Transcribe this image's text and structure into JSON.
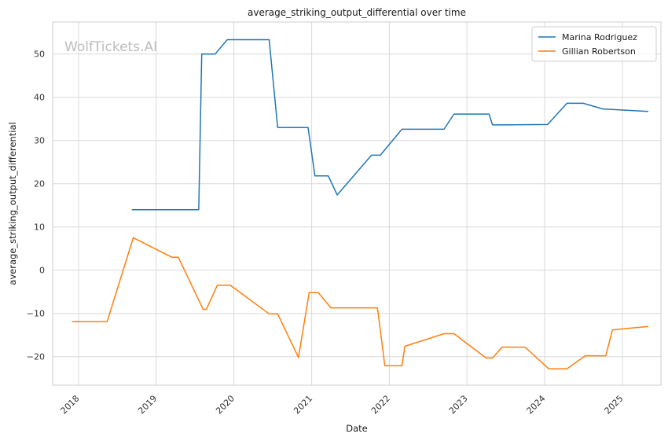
{
  "chart_data": {
    "type": "line",
    "title": "average_striking_output_differential over time",
    "xlabel": "Date",
    "ylabel": "average_striking_output_differential",
    "watermark": "WolfTickets.AI",
    "grid": true,
    "legend_position": "top-right",
    "x_ticks": [
      "2018",
      "2019",
      "2020",
      "2021",
      "2022",
      "2023",
      "2024",
      "2025"
    ],
    "y_ticks": [
      -20,
      -10,
      0,
      10,
      20,
      30,
      40,
      50
    ],
    "xlim": [
      "2017-09-01",
      "2025-07-01"
    ],
    "ylim": [
      -26.6,
      57.4
    ],
    "series": [
      {
        "name": "Marina Rodriguez",
        "color": "#1f77b4",
        "points": [
          [
            "2018-09-08",
            14.0
          ],
          [
            "2019-07-20",
            14.0
          ],
          [
            "2019-08-03",
            50.0
          ],
          [
            "2019-10-05",
            50.0
          ],
          [
            "2019-12-01",
            53.3
          ],
          [
            "2020-06-15",
            53.3
          ],
          [
            "2020-07-25",
            33.0
          ],
          [
            "2020-12-15",
            33.0
          ],
          [
            "2021-01-16",
            21.8
          ],
          [
            "2021-03-20",
            21.8
          ],
          [
            "2021-05-01",
            17.4
          ],
          [
            "2021-10-09",
            26.6
          ],
          [
            "2021-11-20",
            26.6
          ],
          [
            "2022-03-01",
            32.6
          ],
          [
            "2022-09-15",
            32.6
          ],
          [
            "2022-11-01",
            36.1
          ],
          [
            "2023-04-15",
            36.1
          ],
          [
            "2023-05-01",
            33.6
          ],
          [
            "2024-01-15",
            33.7
          ],
          [
            "2024-04-15",
            38.6
          ],
          [
            "2024-07-01",
            38.6
          ],
          [
            "2024-10-01",
            37.3
          ],
          [
            "2025-05-03",
            36.7
          ]
        ]
      },
      {
        "name": "Gillian Robertson",
        "color": "#ff7f0e",
        "points": [
          [
            "2017-12-01",
            -11.9
          ],
          [
            "2018-05-15",
            -11.9
          ],
          [
            "2018-09-15",
            7.5
          ],
          [
            "2019-03-15",
            3.0
          ],
          [
            "2019-04-15",
            3.0
          ],
          [
            "2019-08-10",
            -9.1
          ],
          [
            "2019-08-25",
            -9.0
          ],
          [
            "2019-10-15",
            -3.5
          ],
          [
            "2019-12-15",
            -3.5
          ],
          [
            "2020-06-15",
            -10.1
          ],
          [
            "2020-07-25",
            -10.1
          ],
          [
            "2020-10-31",
            -20.2
          ],
          [
            "2020-12-20",
            -5.2
          ],
          [
            "2021-02-01",
            -5.2
          ],
          [
            "2021-04-01",
            -8.7
          ],
          [
            "2021-11-06",
            -8.7
          ],
          [
            "2021-12-11",
            -22.1
          ],
          [
            "2022-03-01",
            -22.1
          ],
          [
            "2022-03-15",
            -17.6
          ],
          [
            "2022-09-15",
            -14.7
          ],
          [
            "2022-11-01",
            -14.7
          ],
          [
            "2023-04-01",
            -20.3
          ],
          [
            "2023-05-01",
            -20.3
          ],
          [
            "2023-06-15",
            -17.8
          ],
          [
            "2023-10-01",
            -17.8
          ],
          [
            "2024-01-20",
            -22.8
          ],
          [
            "2024-04-15",
            -22.8
          ],
          [
            "2024-07-10",
            -19.8
          ],
          [
            "2024-10-15",
            -19.8
          ],
          [
            "2024-11-15",
            -13.8
          ],
          [
            "2025-05-03",
            -13.0
          ]
        ]
      }
    ]
  }
}
